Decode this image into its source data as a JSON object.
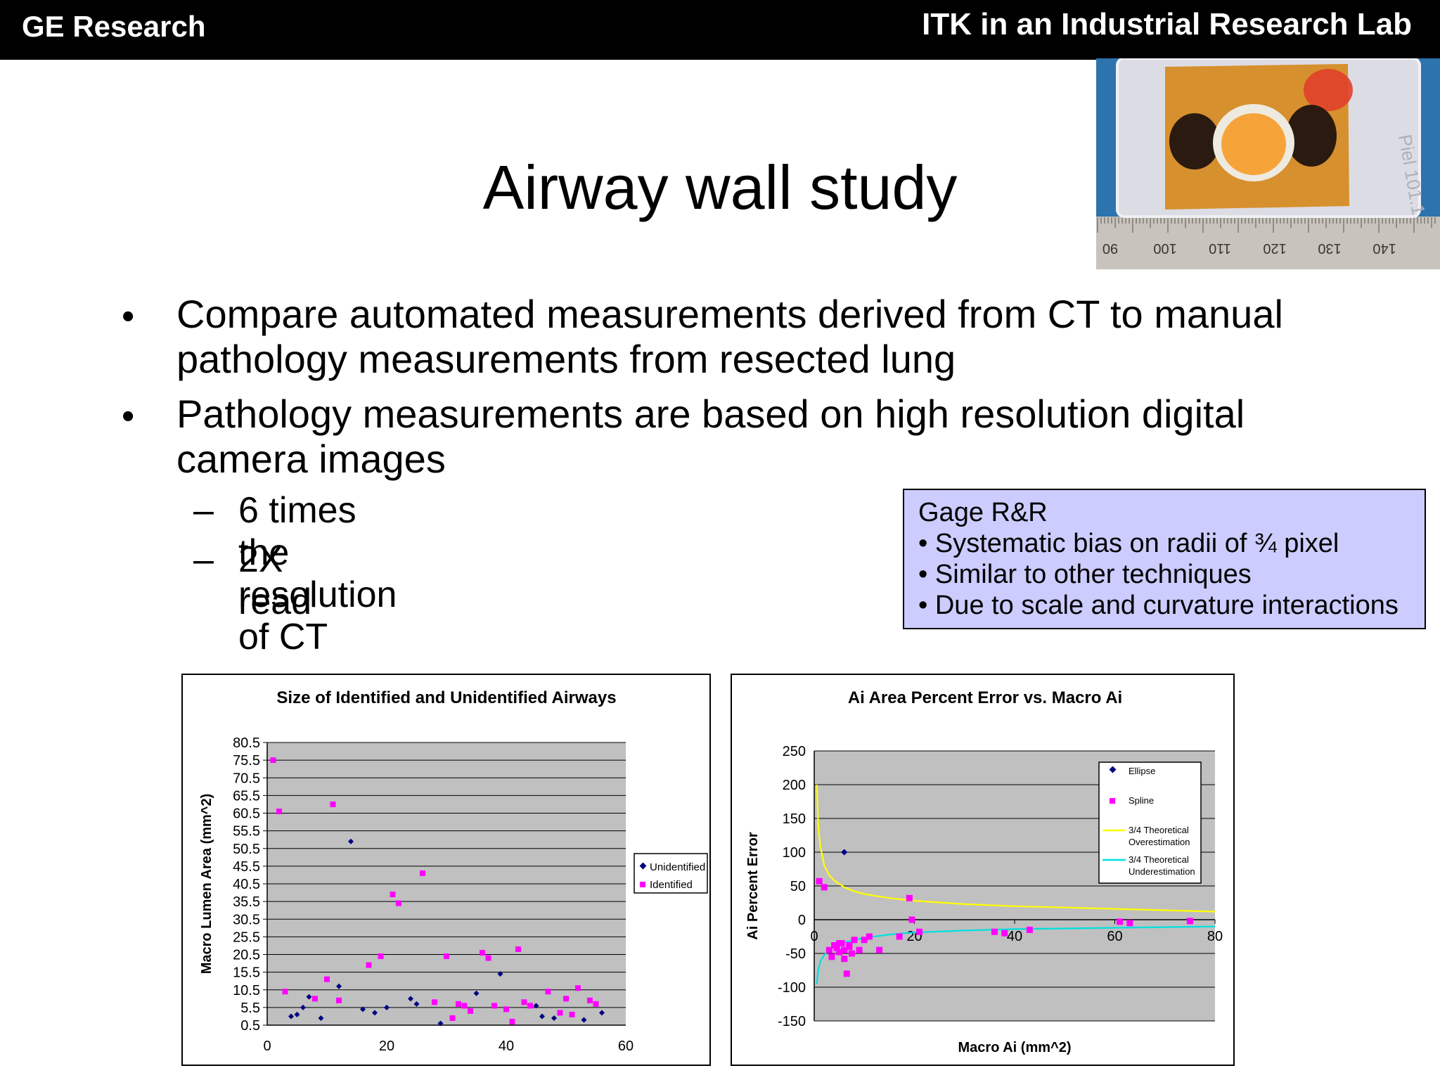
{
  "header": {
    "brand": "GE Research",
    "deck_title": "ITK in an Industrial Research Lab"
  },
  "slide": {
    "title": "Airway wall study",
    "bullets": [
      {
        "lines": [
          "Compare automated measurements derived from CT to manual",
          "pathology measurements from resected lung"
        ]
      },
      {
        "lines": [
          "Pathology measurements are based on high resolution digital",
          "camera images"
        ]
      }
    ],
    "bullet_marker": "•",
    "dash_marker": "–",
    "sub_bullets": [
      "6 times the resolution of CT",
      "2X read"
    ]
  },
  "photo": {
    "ruler_labels": [
      "90",
      "100",
      "110",
      "120",
      "130",
      "140"
    ],
    "cassette_text": "Piel 101.1",
    "colors": {
      "blue_bg": "#2d73ad",
      "tissue": "#d7902e",
      "blood": "#e0402a",
      "dark": "#2a1a10"
    }
  },
  "note_box": {
    "title": "Gage R&R",
    "items": [
      "• Systematic bias on radii of ¾ pixel",
      "• Similar to other techniques",
      "• Due to scale and curvature interactions"
    ],
    "colors": {
      "bg": "#ccccff"
    }
  },
  "chart_data": [
    {
      "type": "scatter",
      "title": "Size of Identified and Unidentified Airways",
      "xlabel": "",
      "ylabel": "Macro Lumen Area (mm^2)",
      "xlim": [
        0,
        60
      ],
      "ylim": [
        0.5,
        80.5
      ],
      "xticks": [
        0,
        20,
        40,
        60
      ],
      "yticks": [
        0.5,
        5.5,
        10.5,
        15.5,
        20.5,
        25.5,
        30.5,
        35.5,
        40.5,
        45.5,
        50.5,
        55.5,
        60.5,
        65.5,
        70.5,
        75.5,
        80.5
      ],
      "grid": true,
      "legend": "right",
      "series": [
        {
          "name": "Unidentified",
          "marker": "diamond",
          "color": "#000080",
          "points": [
            [
              4,
              3
            ],
            [
              5,
              3.5
            ],
            [
              6,
              5.5
            ],
            [
              7,
              8.5
            ],
            [
              9,
              2.5
            ],
            [
              12,
              11.5
            ],
            [
              14,
              52.5
            ],
            [
              16,
              5
            ],
            [
              18,
              4
            ],
            [
              20,
              5.5
            ],
            [
              24,
              8
            ],
            [
              25,
              6.5
            ],
            [
              29,
              1
            ],
            [
              35,
              9.5
            ],
            [
              39,
              15
            ],
            [
              45,
              6
            ],
            [
              46,
              3
            ],
            [
              48,
              2.5
            ],
            [
              53,
              2
            ],
            [
              56,
              4
            ]
          ]
        },
        {
          "name": "Identified",
          "marker": "square",
          "color": "#ff00ff",
          "points": [
            [
              1,
              75.5
            ],
            [
              2,
              61
            ],
            [
              3,
              10
            ],
            [
              8,
              8
            ],
            [
              10,
              13.5
            ],
            [
              11,
              63
            ],
            [
              12,
              7.5
            ],
            [
              17,
              17.5
            ],
            [
              19,
              20
            ],
            [
              21,
              37.5
            ],
            [
              22,
              35
            ],
            [
              26,
              43.5
            ],
            [
              28,
              7
            ],
            [
              30,
              20
            ],
            [
              31,
              2.5
            ],
            [
              32,
              6.5
            ],
            [
              33,
              6
            ],
            [
              34,
              4.5
            ],
            [
              36,
              21
            ],
            [
              37,
              19.5
            ],
            [
              38,
              6
            ],
            [
              40,
              5
            ],
            [
              41,
              1.5
            ],
            [
              42,
              22
            ],
            [
              43,
              7
            ],
            [
              44,
              6
            ],
            [
              47,
              10
            ],
            [
              49,
              4
            ],
            [
              50,
              8
            ],
            [
              51,
              3.5
            ],
            [
              52,
              11
            ],
            [
              54,
              7.5
            ],
            [
              55,
              6.5
            ]
          ]
        }
      ]
    },
    {
      "type": "scatter",
      "title": "Ai Area Percent Error vs. Macro Ai",
      "xlabel": "Macro Ai (mm^2)",
      "ylabel": "Ai Percent Error",
      "xlim": [
        0,
        80
      ],
      "ylim": [
        -150,
        250
      ],
      "xticks": [
        0,
        20,
        40,
        60,
        80
      ],
      "yticks": [
        -150,
        -100,
        -50,
        0,
        50,
        100,
        150,
        200,
        250
      ],
      "grid": true,
      "legend": "top-right",
      "series": [
        {
          "name": "Ellipse",
          "marker": "diamond",
          "color": "#000080",
          "points": [
            [
              6,
              100
            ]
          ]
        },
        {
          "name": "Spline",
          "marker": "square",
          "color": "#ff00ff",
          "points": [
            [
              1,
              57
            ],
            [
              2,
              48
            ],
            [
              3,
              -45
            ],
            [
              3.5,
              -55
            ],
            [
              4,
              -38
            ],
            [
              4.5,
              -42
            ],
            [
              5,
              -48
            ],
            [
              5.5,
              -35
            ],
            [
              6,
              -58
            ],
            [
              6.5,
              -80
            ],
            [
              7,
              -40
            ],
            [
              7.5,
              -50
            ],
            [
              8,
              -30
            ],
            [
              9,
              -45
            ],
            [
              10,
              -30
            ],
            [
              11,
              -25
            ],
            [
              13,
              -45
            ],
            [
              17,
              -25
            ],
            [
              19,
              32
            ],
            [
              19.5,
              0
            ],
            [
              21,
              -18
            ],
            [
              36,
              -18
            ],
            [
              38,
              -20
            ],
            [
              43,
              -15
            ],
            [
              61,
              -3
            ],
            [
              63,
              -5
            ],
            [
              75,
              -2
            ],
            [
              6,
              -45
            ],
            [
              5,
              -35
            ],
            [
              7,
              -38
            ]
          ]
        },
        {
          "name": "3/4 Theoretical Overestimation",
          "marker": "line",
          "color": "#ffff00",
          "points": [
            [
              0.5,
              200
            ],
            [
              0.8,
              140
            ],
            [
              1.2,
              110
            ],
            [
              2,
              80
            ],
            [
              3,
              66
            ],
            [
              4,
              58
            ],
            [
              6,
              48
            ],
            [
              8,
              42
            ],
            [
              10,
              38
            ],
            [
              15,
              32
            ],
            [
              20,
              28
            ],
            [
              30,
              23
            ],
            [
              40,
              20
            ],
            [
              50,
              18
            ],
            [
              60,
              16
            ],
            [
              70,
              14
            ],
            [
              80,
              12
            ]
          ]
        },
        {
          "name": "3/4 Theoretical Underestimation",
          "marker": "line",
          "color": "#00e0e0",
          "points": [
            [
              0.5,
              -95
            ],
            [
              0.8,
              -75
            ],
            [
              1.2,
              -62
            ],
            [
              2,
              -52
            ],
            [
              3,
              -45
            ],
            [
              4,
              -40
            ],
            [
              6,
              -34
            ],
            [
              8,
              -30
            ],
            [
              10,
              -27
            ],
            [
              15,
              -22
            ],
            [
              20,
              -19
            ],
            [
              30,
              -16
            ],
            [
              40,
              -14
            ],
            [
              50,
              -13
            ],
            [
              60,
              -12
            ],
            [
              70,
              -11
            ],
            [
              80,
              -10
            ]
          ]
        }
      ],
      "legend_labels": [
        "Ellipse",
        "Spline",
        "3/4 Theoretical",
        "Overestimation",
        "3/4 Theoretical",
        "Underestimation"
      ]
    }
  ]
}
